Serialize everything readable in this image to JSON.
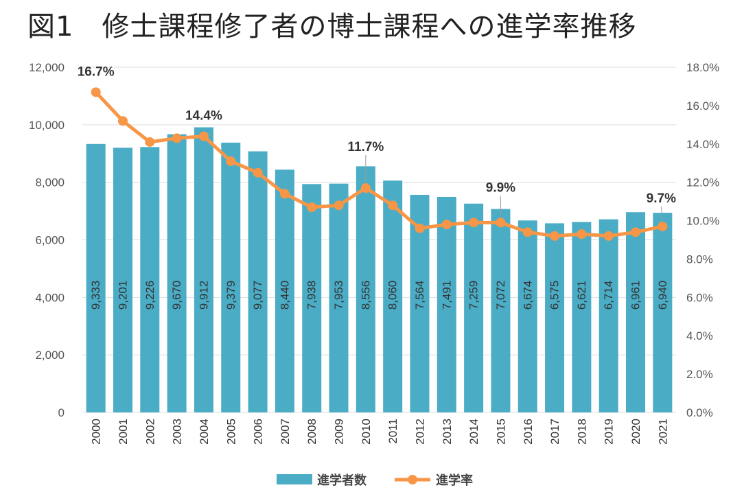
{
  "chart_data": {
    "type": "bar",
    "title": "図1　修士課程修了者の博士課程への進学率推移",
    "categories": [
      "2000",
      "2001",
      "2002",
      "2003",
      "2004",
      "2005",
      "2006",
      "2007",
      "2008",
      "2009",
      "2010",
      "2011",
      "2012",
      "2013",
      "2014",
      "2015",
      "2016",
      "2017",
      "2018",
      "2019",
      "2020",
      "2021"
    ],
    "series": [
      {
        "name": "進学者数",
        "type": "bar",
        "axis": "left",
        "color": "#4bacc6",
        "values": [
          9333,
          9201,
          9226,
          9670,
          9912,
          9379,
          9077,
          8440,
          7938,
          7953,
          8556,
          8060,
          7564,
          7491,
          7259,
          7072,
          6674,
          6575,
          6621,
          6714,
          6961,
          6940
        ],
        "labels": [
          "9,333",
          "9,201",
          "9,226",
          "9,670",
          "9,912",
          "9,379",
          "9,077",
          "8,440",
          "7,938",
          "7,953",
          "8,556",
          "8,060",
          "7,564",
          "7,491",
          "7,259",
          "7,072",
          "6,674",
          "6,575",
          "6,621",
          "6,714",
          "6,961",
          "6,940"
        ]
      },
      {
        "name": "進学率",
        "type": "line",
        "axis": "right",
        "color": "#f79646",
        "values": [
          16.7,
          15.2,
          14.1,
          14.3,
          14.4,
          13.1,
          12.5,
          11.4,
          10.7,
          10.8,
          11.7,
          10.8,
          9.6,
          9.8,
          9.9,
          9.9,
          9.4,
          9.2,
          9.3,
          9.2,
          9.4,
          9.7
        ],
        "annotations": [
          {
            "index": 0,
            "label": "16.7%"
          },
          {
            "index": 4,
            "label": "14.4%"
          },
          {
            "index": 10,
            "label": "11.7%"
          },
          {
            "index": 15,
            "label": "9.9%"
          },
          {
            "index": 21,
            "label": "9.7%"
          }
        ]
      }
    ],
    "y_left": {
      "range": [
        0,
        12000
      ],
      "ticks": [
        "0",
        "2,000",
        "4,000",
        "6,000",
        "8,000",
        "10,000",
        "12,000"
      ]
    },
    "y_right": {
      "range": [
        0,
        18
      ],
      "ticks": [
        "0.0%",
        "2.0%",
        "4.0%",
        "6.0%",
        "8.0%",
        "10.0%",
        "12.0%",
        "14.0%",
        "16.0%",
        "18.0%"
      ]
    },
    "grid": true,
    "legend_position": "bottom"
  }
}
